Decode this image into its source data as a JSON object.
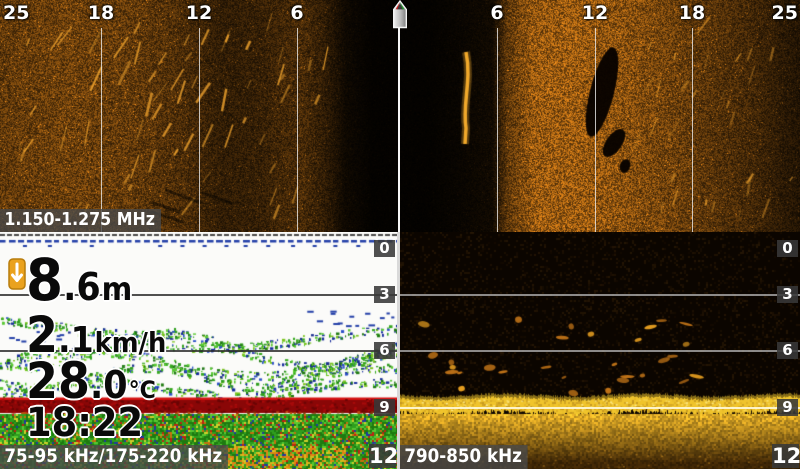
{
  "palette": {
    "si_amber": "#e89a20",
    "pane_black": "#0b0500",
    "sonar_bg": "#fbfbf9",
    "surface_blue": "#2440a8",
    "veg_green": "#2f9e1f",
    "veg_blue": "#14289b",
    "bottom_red": "#8a0707",
    "bottom_red_bright": "#d31212",
    "di_band_yellow": "#f0c42c",
    "di_fish_orange": "#c87818",
    "label_bg": "rgba(72,72,72,0.8)",
    "label_text": "#ffffff",
    "depth_box_bg": "rgba(56,56,56,0.88)",
    "readout_text": "#0a0a0a",
    "icon_orange": "#eaa21e"
  },
  "top_pane": {
    "freq_label": "1.150-1.275 MHz",
    "range_marks_left": [
      "25",
      "18",
      "12",
      "6"
    ],
    "range_marks_right": [
      "6",
      "12",
      "18",
      "25"
    ]
  },
  "sonar_pane": {
    "freq_label": "75-95 kHz/175-220 kHz",
    "depth_scale": [
      "0",
      "3",
      "6",
      "9",
      "12"
    ],
    "readouts": {
      "depth": {
        "int": "8",
        "dec": ".6",
        "unit": "m"
      },
      "speed": {
        "int": "2",
        "dec": ".1",
        "unit": "km/h"
      },
      "temp": {
        "int": "28",
        "dec": ".0",
        "unit": "°C"
      },
      "time": "18:22"
    }
  },
  "down_pane": {
    "freq_label": "790-850 kHz",
    "depth_scale": [
      "0",
      "3",
      "6",
      "9",
      "12"
    ]
  },
  "icons": {
    "boat": "boat-top-view",
    "depth": "down-arrow"
  }
}
